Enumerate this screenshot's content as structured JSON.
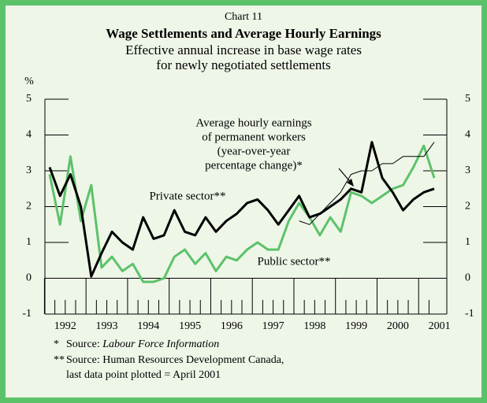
{
  "chart_data": {
    "type": "line",
    "kicker": "Chart 11",
    "title": "Wage Settlements and Average Hourly Earnings",
    "subtitle": [
      "Effective annual increase in base wage rates",
      "for newly negotiated settlements"
    ],
    "y_unit": "%",
    "categories": [
      "1992",
      null,
      null,
      null,
      "1993",
      null,
      null,
      null,
      "1994",
      null,
      null,
      null,
      "1995",
      null,
      null,
      null,
      "1996",
      null,
      null,
      null,
      "1997",
      null,
      null,
      null,
      "1998",
      null,
      null,
      null,
      "1999",
      null,
      null,
      null,
      "2000",
      null,
      null,
      null,
      "2001",
      null
    ],
    "series": [
      {
        "name": "Private sector**",
        "color": "#000000",
        "width": 3,
        "values": [
          3.1,
          2.3,
          2.9,
          2.0,
          0.05,
          0.7,
          1.3,
          1.0,
          0.8,
          1.7,
          1.1,
          1.2,
          1.9,
          1.3,
          1.2,
          1.7,
          1.3,
          1.6,
          1.8,
          2.1,
          2.2,
          1.9,
          1.5,
          1.9,
          2.3,
          1.7,
          1.8,
          2.0,
          2.2,
          2.5,
          2.4,
          3.8,
          2.8,
          2.4,
          1.9,
          2.2,
          2.4,
          2.5
        ]
      },
      {
        "name": "Public sector**",
        "color": "#5cc26a",
        "width": 3,
        "values": [
          2.9,
          1.5,
          3.4,
          1.6,
          2.6,
          0.3,
          0.6,
          0.2,
          0.4,
          -0.1,
          -0.1,
          0.0,
          0.6,
          0.8,
          0.4,
          0.7,
          0.2,
          0.6,
          0.5,
          0.8,
          1.0,
          0.8,
          0.8,
          1.6,
          2.1,
          1.7,
          1.2,
          1.7,
          1.3,
          2.4,
          2.3,
          2.1,
          2.3,
          2.5,
          2.6,
          3.1,
          3.7,
          2.8
        ]
      },
      {
        "name": "Average hourly earnings of permanent workers (year-over-year percentage change)*",
        "color": "#000000",
        "width": 1,
        "label_lines": [
          "Average hourly earnings",
          "of permanent workers",
          "(year-over-year",
          "percentage change)*"
        ],
        "values": [
          null,
          null,
          null,
          null,
          null,
          null,
          null,
          null,
          null,
          null,
          null,
          null,
          null,
          null,
          null,
          null,
          null,
          null,
          null,
          null,
          null,
          null,
          null,
          null,
          1.6,
          1.5,
          1.8,
          2.1,
          2.4,
          2.9,
          3.0,
          3.0,
          3.2,
          3.2,
          3.4,
          3.4,
          3.4,
          3.8
        ]
      }
    ],
    "ylim": [
      -1,
      5
    ],
    "yticks": [
      -1,
      0,
      1,
      2,
      3,
      4,
      5
    ],
    "footnotes": [
      {
        "marker": "*",
        "text": "Source:",
        "source": "Labour Force Information"
      },
      {
        "marker": "**",
        "text": "Source: Human Resources Development Canada,"
      },
      {
        "text": "last data point plotted = April 2001"
      }
    ]
  }
}
